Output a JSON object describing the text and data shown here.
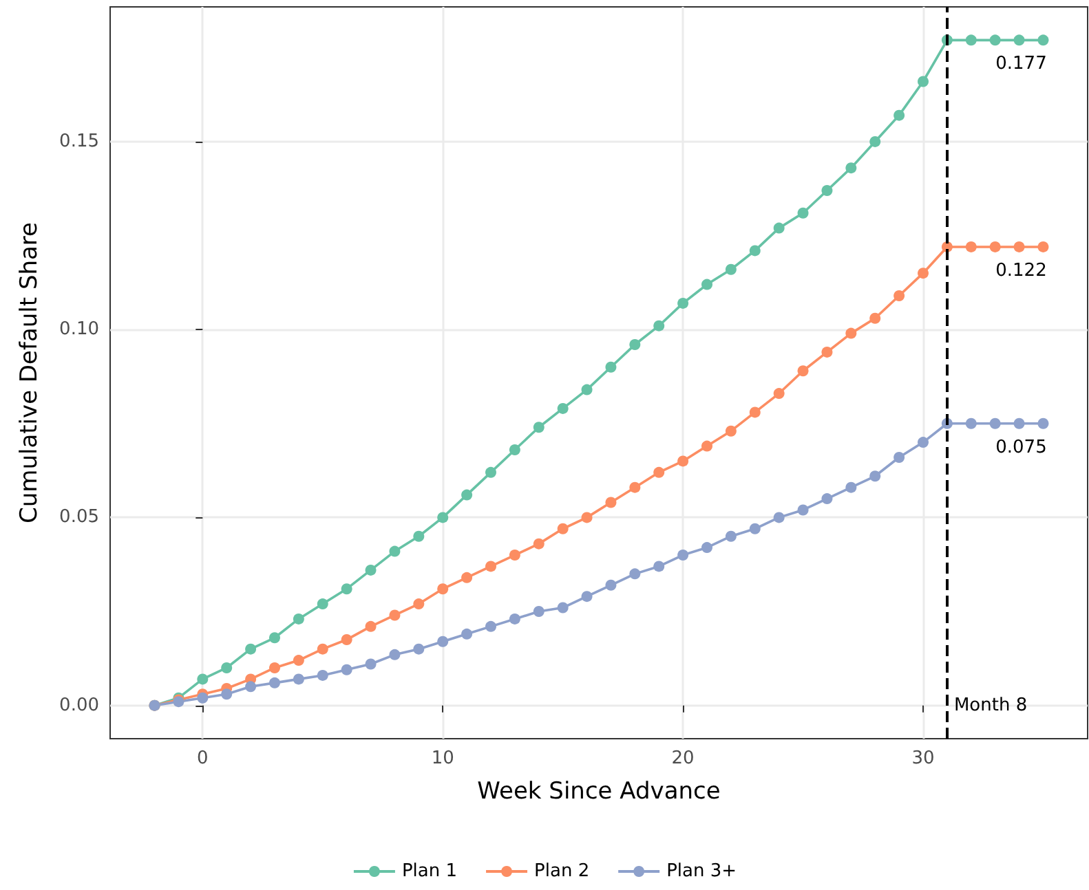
{
  "chart_data": {
    "type": "line",
    "xlabel": "Week Since Advance",
    "ylabel": "Cumulative Default Share",
    "x": [
      -2,
      -1,
      0,
      1,
      2,
      3,
      4,
      5,
      6,
      7,
      8,
      9,
      10,
      11,
      12,
      13,
      14,
      15,
      16,
      17,
      18,
      19,
      20,
      21,
      22,
      23,
      24,
      25,
      26,
      27,
      28,
      29,
      30,
      31,
      32,
      33,
      34,
      35
    ],
    "series": [
      {
        "name": "Plan 1",
        "color": "#66c2a5",
        "values": [
          0,
          0.002,
          0.007,
          0.01,
          0.015,
          0.018,
          0.023,
          0.027,
          0.031,
          0.036,
          0.041,
          0.045,
          0.05,
          0.056,
          0.062,
          0.068,
          0.074,
          0.079,
          0.084,
          0.09,
          0.096,
          0.101,
          0.107,
          0.112,
          0.116,
          0.121,
          0.127,
          0.131,
          0.137,
          0.143,
          0.15,
          0.157,
          0.166,
          0.177,
          0.177,
          0.177,
          0.177,
          0.177
        ],
        "value_labels": [
          null,
          null,
          null,
          null,
          null,
          null,
          null,
          null,
          null,
          null,
          null,
          null,
          null,
          null,
          null,
          null,
          null,
          null,
          null,
          null,
          null,
          null,
          null,
          null,
          null,
          null,
          null,
          null,
          null,
          null,
          null,
          null,
          null,
          null,
          null,
          null,
          null,
          "0.177"
        ]
      },
      {
        "name": "Plan 2",
        "color": "#fc8d62",
        "values": [
          0,
          0.0015,
          0.003,
          0.0045,
          0.007,
          0.01,
          0.012,
          0.015,
          0.0175,
          0.021,
          0.024,
          0.027,
          0.031,
          0.034,
          0.037,
          0.04,
          0.043,
          0.047,
          0.05,
          0.054,
          0.058,
          0.062,
          0.065,
          0.069,
          0.073,
          0.078,
          0.083,
          0.089,
          0.094,
          0.099,
          0.103,
          0.109,
          0.115,
          0.122,
          0.122,
          0.122,
          0.122,
          0.122
        ],
        "value_labels": [
          null,
          null,
          null,
          null,
          null,
          null,
          null,
          null,
          null,
          null,
          null,
          null,
          null,
          null,
          null,
          null,
          null,
          null,
          null,
          null,
          null,
          null,
          null,
          null,
          null,
          null,
          null,
          null,
          null,
          null,
          null,
          null,
          null,
          null,
          null,
          null,
          null,
          "0.122"
        ]
      },
      {
        "name": "Plan 3+",
        "color": "#8da0cb",
        "values": [
          0,
          0.001,
          0.002,
          0.003,
          0.005,
          0.006,
          0.007,
          0.008,
          0.0095,
          0.011,
          0.0135,
          0.015,
          0.017,
          0.019,
          0.021,
          0.023,
          0.025,
          0.026,
          0.029,
          0.032,
          0.035,
          0.037,
          0.04,
          0.042,
          0.045,
          0.047,
          0.05,
          0.052,
          0.055,
          0.058,
          0.061,
          0.066,
          0.07,
          0.075,
          0.075,
          0.075,
          0.075,
          0.075
        ],
        "value_labels": [
          null,
          null,
          null,
          null,
          null,
          null,
          null,
          null,
          null,
          null,
          null,
          null,
          null,
          null,
          null,
          null,
          null,
          null,
          null,
          null,
          null,
          null,
          null,
          null,
          null,
          null,
          null,
          null,
          null,
          null,
          null,
          null,
          null,
          null,
          null,
          null,
          null,
          "0.075"
        ]
      }
    ],
    "xlim": [
      -3.85,
      36.85
    ],
    "xticks": [
      0,
      10,
      20,
      30
    ],
    "ylim": [
      -0.00885,
      0.18585
    ],
    "yticks": [
      {
        "value": 0,
        "label": "0.00"
      },
      {
        "value": 0.05,
        "label": "0.05"
      },
      {
        "value": 0.1,
        "label": "0.10"
      },
      {
        "value": 0.15,
        "label": "0.15"
      }
    ],
    "ref_lines": [
      {
        "axis": "x",
        "value": 31,
        "label": "Month 8",
        "color": "#000000",
        "line_style": "dashed"
      }
    ],
    "grid": true,
    "legend": "bottom",
    "marker": "circle",
    "line_style": "solid"
  }
}
